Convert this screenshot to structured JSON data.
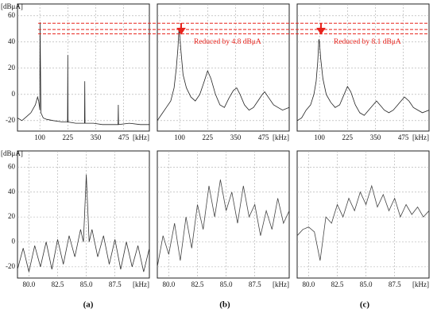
{
  "chart_data": [
    {
      "type": "line",
      "y_label": "[dBμA]",
      "x_label": "[kHz]",
      "x": [
        0,
        20,
        40,
        60,
        80,
        90,
        95,
        100,
        101,
        105,
        115,
        130,
        160,
        200,
        224,
        225,
        226,
        260,
        300,
        301,
        302,
        340,
        380,
        420,
        450,
        451,
        452,
        500,
        550,
        590
      ],
      "series": [
        {
          "color": "#222",
          "values": [
            -18,
            -20,
            -17,
            -14,
            -8,
            -2,
            -5,
            -12,
            55,
            -14,
            -18,
            -19,
            -20,
            -21,
            -21,
            30,
            -21,
            -22,
            -22,
            10,
            -22,
            -22,
            -23,
            -23,
            -23,
            -8,
            -23,
            -22,
            -23,
            -23
          ]
        }
      ],
      "xlim": [
        0,
        590
      ],
      "ylim": [
        -28,
        69
      ],
      "xticks": [
        100,
        225,
        350,
        475
      ],
      "yticks": [
        -20,
        0,
        20,
        40,
        60
      ],
      "reference_levels": [
        54.3,
        49.5,
        46.2
      ],
      "reference_color": "#e8231c"
    },
    {
      "type": "line",
      "x_label": "[kHz]",
      "x": [
        0,
        20,
        40,
        60,
        75,
        85,
        92,
        97,
        100,
        105,
        115,
        130,
        150,
        170,
        190,
        210,
        225,
        240,
        260,
        280,
        300,
        320,
        340,
        355,
        370,
        390,
        410,
        430,
        450,
        470,
        480,
        500,
        520,
        540,
        560,
        590
      ],
      "series": [
        {
          "color": "#222",
          "values": [
            -20,
            -15,
            -10,
            -5,
            5,
            20,
            35,
            50,
            46,
            35,
            15,
            5,
            -2,
            -5,
            0,
            10,
            18,
            12,
            0,
            -8,
            -10,
            -3,
            3,
            5,
            0,
            -8,
            -12,
            -10,
            -5,
            0,
            2,
            -3,
            -8,
            -10,
            -12,
            -10
          ]
        }
      ],
      "xlim": [
        0,
        590
      ],
      "ylim": [
        -28,
        69
      ],
      "xticks": [
        100,
        225,
        350,
        475
      ],
      "yticks": [
        -20,
        0,
        20,
        40,
        60
      ],
      "annotation": "Reduced by 4.8 dBμA"
    },
    {
      "type": "line",
      "x_label": "[kHz]",
      "x": [
        0,
        20,
        40,
        60,
        75,
        85,
        92,
        97,
        100,
        105,
        115,
        130,
        150,
        170,
        190,
        210,
        225,
        240,
        260,
        280,
        300,
        320,
        340,
        355,
        370,
        390,
        410,
        430,
        450,
        470,
        480,
        500,
        520,
        540,
        560,
        590
      ],
      "series": [
        {
          "color": "#222",
          "values": [
            -20,
            -18,
            -12,
            -8,
            0,
            10,
            25,
            42,
            40,
            28,
            12,
            0,
            -6,
            -10,
            -8,
            0,
            6,
            2,
            -8,
            -14,
            -16,
            -12,
            -8,
            -5,
            -8,
            -12,
            -14,
            -12,
            -8,
            -4,
            -2,
            -5,
            -10,
            -12,
            -14,
            -12
          ]
        }
      ],
      "xlim": [
        0,
        590
      ],
      "ylim": [
        -28,
        69
      ],
      "xticks": [
        100,
        225,
        350,
        475
      ],
      "yticks": [
        -20,
        0,
        20,
        40,
        60
      ],
      "annotation": "Reduced by 8.1 dBμA"
    },
    {
      "type": "line",
      "y_label": "[dBμA]",
      "x_label": "[kHz]",
      "x": [
        79,
        79.5,
        80,
        80.5,
        81,
        81.5,
        82,
        82.5,
        83,
        83.5,
        84,
        84.5,
        84.75,
        85,
        85.25,
        85.5,
        86,
        86.5,
        87,
        87.5,
        88,
        88.5,
        89,
        89.5,
        90,
        90.5
      ],
      "series": [
        {
          "color": "#333",
          "values": [
            -22,
            -5,
            -24,
            -3,
            -20,
            0,
            -22,
            2,
            -18,
            5,
            -12,
            10,
            0,
            54,
            0,
            10,
            -12,
            5,
            -18,
            2,
            -22,
            0,
            -20,
            -3,
            -24,
            -5
          ]
        }
      ],
      "xlim": [
        79,
        90.5
      ],
      "ylim": [
        -29,
        73
      ],
      "xticks": [
        {
          "value": 80,
          "label": "80.0"
        },
        82.5,
        {
          "value": 85,
          "label": "85.0"
        },
        87.5
      ],
      "yticks": [
        -20,
        0,
        20,
        40,
        60
      ]
    },
    {
      "type": "line",
      "x_label": "[kHz]",
      "x": [
        79,
        79.5,
        80,
        80.5,
        81,
        81.5,
        82,
        82.5,
        83,
        83.5,
        84,
        84.5,
        85,
        85.5,
        86,
        86.5,
        87,
        87.5,
        88,
        88.5,
        89,
        89.5,
        90,
        90.5
      ],
      "series": [
        {
          "color": "#444",
          "values": [
            -20,
            5,
            -10,
            15,
            -15,
            20,
            -5,
            30,
            10,
            45,
            20,
            50,
            25,
            40,
            15,
            45,
            20,
            30,
            5,
            25,
            10,
            35,
            15,
            25
          ]
        }
      ],
      "xlim": [
        79,
        90.5
      ],
      "ylim": [
        -29,
        73
      ],
      "xticks": [
        {
          "value": 80,
          "label": "80.0"
        },
        82.5,
        {
          "value": 85,
          "label": "85.0"
        },
        87.5
      ],
      "yticks": [
        -20,
        0,
        20,
        40,
        60
      ]
    },
    {
      "type": "line",
      "x_label": "[kHz]",
      "x": [
        79,
        79.5,
        80,
        80.5,
        81,
        81.5,
        82,
        82.5,
        83,
        83.5,
        84,
        84.5,
        85,
        85.5,
        86,
        86.5,
        87,
        87.5,
        88,
        88.5,
        89,
        89.5,
        90,
        90.5
      ],
      "series": [
        {
          "color": "#444",
          "values": [
            5,
            10,
            12,
            8,
            -15,
            20,
            15,
            30,
            20,
            35,
            25,
            40,
            30,
            45,
            28,
            38,
            25,
            35,
            20,
            30,
            22,
            28,
            20,
            25
          ]
        }
      ],
      "xlim": [
        79,
        90.5
      ],
      "ylim": [
        -29,
        73
      ],
      "xticks": [
        {
          "value": 80,
          "label": "80.0"
        },
        82.5,
        {
          "value": 85,
          "label": "85.0"
        },
        87.5
      ],
      "yticks": [
        -20,
        0,
        20,
        40,
        60
      ]
    }
  ],
  "captions": [
    "(a)",
    "(b)",
    "(c)"
  ]
}
